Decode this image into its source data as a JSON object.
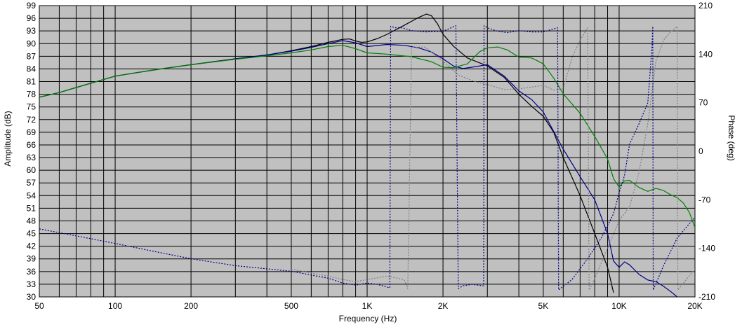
{
  "chart_data": {
    "type": "line",
    "xlabel": "Frequency (Hz)",
    "ylabel": "Amplitude (dB)",
    "y2label": "Phase (deg)",
    "xscale": "log",
    "xlim": [
      50,
      20000
    ],
    "ylim": [
      30,
      99
    ],
    "y2lim": [
      -210,
      210
    ],
    "x_ticks": [
      50,
      100,
      200,
      500,
      1000,
      2000,
      5000,
      10000,
      20000
    ],
    "x_tick_labels": [
      "50",
      "100",
      "200",
      "500",
      "1K",
      "2K",
      "5K",
      "10K",
      "20K"
    ],
    "y_ticks": [
      30,
      33,
      36,
      39,
      42,
      45,
      48,
      51,
      54,
      57,
      60,
      63,
      66,
      69,
      72,
      75,
      78,
      81,
      84,
      87,
      90,
      93,
      96,
      99
    ],
    "y2_ticks": [
      210,
      140,
      70,
      0,
      -70,
      -140,
      -210
    ],
    "x_minor_grid": [
      60,
      70,
      80,
      90,
      300,
      400,
      600,
      700,
      800,
      900,
      3000,
      4000,
      6000,
      7000,
      8000,
      9000
    ],
    "grid": true,
    "colors": {
      "plot_background": "#c0c0c0",
      "grid": "#000000",
      "black": "#000000",
      "blue": "#00008b",
      "green": "#008000",
      "gray": "#808080"
    },
    "series": [
      {
        "color": "#000000",
        "style": "solid",
        "axis": "left",
        "points": [
          [
            50,
            77.3
          ],
          [
            60,
            78.4
          ],
          [
            70,
            79.6
          ],
          [
            80,
            80.6
          ],
          [
            100,
            82.3
          ],
          [
            130,
            83.4
          ],
          [
            160,
            84.2
          ],
          [
            200,
            85.0
          ],
          [
            300,
            86.4
          ],
          [
            400,
            87.3
          ],
          [
            500,
            88.3
          ],
          [
            600,
            89.3
          ],
          [
            700,
            90.3
          ],
          [
            800,
            91.0
          ],
          [
            850,
            91.1
          ],
          [
            900,
            90.6
          ],
          [
            950,
            90.3
          ],
          [
            1000,
            90.4
          ],
          [
            1100,
            91.2
          ],
          [
            1200,
            92.2
          ],
          [
            1400,
            94.3
          ],
          [
            1600,
            96.2
          ],
          [
            1720,
            97.0
          ],
          [
            1800,
            96.6
          ],
          [
            1900,
            94.7
          ],
          [
            2000,
            92.2
          ],
          [
            2200,
            89.4
          ],
          [
            2500,
            86.6
          ],
          [
            3000,
            84.7
          ],
          [
            3500,
            82.0
          ],
          [
            4000,
            78.0
          ],
          [
            4500,
            75.1
          ],
          [
            5000,
            72.8
          ],
          [
            5500,
            69.0
          ],
          [
            6000,
            63.0
          ],
          [
            7000,
            54.0
          ],
          [
            8000,
            45.0
          ],
          [
            9000,
            37.0
          ],
          [
            9500,
            31.0
          ]
        ]
      },
      {
        "color": "#00008b",
        "style": "solid",
        "axis": "left",
        "points": [
          [
            50,
            77.3
          ],
          [
            60,
            78.4
          ],
          [
            70,
            79.6
          ],
          [
            80,
            80.6
          ],
          [
            100,
            82.3
          ],
          [
            130,
            83.4
          ],
          [
            160,
            84.2
          ],
          [
            200,
            85.0
          ],
          [
            300,
            86.4
          ],
          [
            400,
            87.3
          ],
          [
            500,
            88.2
          ],
          [
            600,
            89.1
          ],
          [
            700,
            90.0
          ],
          [
            800,
            90.7
          ],
          [
            900,
            90.2
          ],
          [
            1000,
            89.3
          ],
          [
            1200,
            89.8
          ],
          [
            1400,
            89.6
          ],
          [
            1600,
            89.0
          ],
          [
            1800,
            88.0
          ],
          [
            2000,
            86.4
          ],
          [
            2200,
            84.7
          ],
          [
            2400,
            84.1
          ],
          [
            2600,
            84.4
          ],
          [
            3000,
            85.0
          ],
          [
            3500,
            82.3
          ],
          [
            4000,
            78.8
          ],
          [
            4500,
            76.7
          ],
          [
            5000,
            73.8
          ],
          [
            6000,
            65.0
          ],
          [
            7000,
            58.5
          ],
          [
            8000,
            53.0
          ],
          [
            9000,
            45.0
          ],
          [
            9500,
            38.5
          ],
          [
            10000,
            37.0
          ],
          [
            10500,
            38.3
          ],
          [
            11000,
            37.6
          ],
          [
            12000,
            35.3
          ],
          [
            13000,
            34.0
          ],
          [
            14000,
            33.6
          ],
          [
            15000,
            32.5
          ],
          [
            16000,
            31.3
          ],
          [
            17000,
            30.0
          ]
        ]
      },
      {
        "color": "#008000",
        "style": "solid",
        "axis": "left",
        "points": [
          [
            50,
            77.3
          ],
          [
            60,
            78.4
          ],
          [
            70,
            79.6
          ],
          [
            80,
            80.6
          ],
          [
            100,
            82.3
          ],
          [
            130,
            83.4
          ],
          [
            160,
            84.2
          ],
          [
            200,
            85.0
          ],
          [
            300,
            86.3
          ],
          [
            400,
            87.1
          ],
          [
            500,
            87.8
          ],
          [
            600,
            88.5
          ],
          [
            700,
            89.3
          ],
          [
            800,
            89.6
          ],
          [
            900,
            88.8
          ],
          [
            1000,
            87.8
          ],
          [
            1200,
            87.5
          ],
          [
            1500,
            86.9
          ],
          [
            1800,
            85.7
          ],
          [
            2000,
            84.4
          ],
          [
            2200,
            84.3
          ],
          [
            2500,
            85.2
          ],
          [
            2800,
            88.1
          ],
          [
            3000,
            89.0
          ],
          [
            3300,
            89.2
          ],
          [
            3600,
            88.5
          ],
          [
            4000,
            86.8
          ],
          [
            4500,
            86.6
          ],
          [
            5000,
            85.2
          ],
          [
            5500,
            81.8
          ],
          [
            6000,
            78.1
          ],
          [
            7000,
            73.5
          ],
          [
            8000,
            68.0
          ],
          [
            9000,
            62.7
          ],
          [
            9500,
            58.0
          ],
          [
            10000,
            56.0
          ],
          [
            10500,
            57.5
          ],
          [
            11000,
            57.6
          ],
          [
            12000,
            55.9
          ],
          [
            13000,
            55.0
          ],
          [
            14000,
            55.7
          ],
          [
            15000,
            55.2
          ],
          [
            16000,
            54.2
          ],
          [
            17000,
            53.5
          ],
          [
            18000,
            52.2
          ],
          [
            19000,
            50.0
          ],
          [
            20000,
            46.4
          ]
        ]
      },
      {
        "color": "#00008b",
        "style": "dotted",
        "axis": "right",
        "points": [
          [
            50,
            -112
          ],
          [
            70,
            -122
          ],
          [
            100,
            -133
          ],
          [
            150,
            -146
          ],
          [
            200,
            -155
          ],
          [
            300,
            -165
          ],
          [
            500,
            -173
          ],
          [
            700,
            -183
          ],
          [
            800,
            -190
          ],
          [
            900,
            -193
          ],
          [
            1000,
            -190
          ],
          [
            1100,
            -192
          ],
          [
            1230,
            -197
          ],
          [
            1240,
            180
          ],
          [
            1300,
            178
          ],
          [
            1350,
            178
          ],
          [
            1380,
            178
          ],
          [
            1500,
            174
          ],
          [
            1700,
            172
          ],
          [
            2000,
            173
          ],
          [
            2250,
            181
          ],
          [
            2300,
            -198
          ],
          [
            2400,
            -194
          ],
          [
            2600,
            -192
          ],
          [
            2900,
            -194
          ],
          [
            2910,
            181
          ],
          [
            3000,
            178
          ],
          [
            3300,
            173
          ],
          [
            3600,
            171
          ],
          [
            4000,
            174
          ],
          [
            4500,
            172
          ],
          [
            5000,
            172
          ],
          [
            5700,
            178
          ],
          [
            5750,
            -200
          ],
          [
            6500,
            -185
          ],
          [
            7500,
            -155
          ],
          [
            8500,
            -125
          ],
          [
            9500,
            -90
          ],
          [
            10000,
            -60
          ],
          [
            10500,
            -35
          ],
          [
            11000,
            10
          ],
          [
            12000,
            40
          ],
          [
            13000,
            70
          ],
          [
            13500,
            150
          ],
          [
            13600,
            180
          ],
          [
            13650,
            -200
          ],
          [
            15000,
            -165
          ],
          [
            17000,
            -125
          ],
          [
            20000,
            -95
          ]
        ]
      },
      {
        "color": "#808080",
        "style": "dotted",
        "axis": "right",
        "points": [
          [
            500,
            -170
          ],
          [
            700,
            -180
          ],
          [
            800,
            -185
          ],
          [
            900,
            -188
          ],
          [
            1000,
            -185
          ],
          [
            1200,
            -180
          ],
          [
            1400,
            -185
          ],
          [
            1450,
            -198
          ],
          [
            1500,
            150
          ],
          [
            1700,
            150
          ],
          [
            2000,
            130
          ],
          [
            2300,
            110
          ],
          [
            2600,
            102
          ],
          [
            3000,
            96
          ],
          [
            3500,
            89
          ],
          [
            4000,
            90
          ],
          [
            5000,
            95
          ],
          [
            5500,
            88
          ],
          [
            6000,
            90
          ],
          [
            6500,
            135
          ],
          [
            7000,
            160
          ],
          [
            7500,
            178
          ],
          [
            7600,
            -200
          ],
          [
            8000,
            -183
          ],
          [
            9000,
            -140
          ],
          [
            10000,
            -100
          ],
          [
            11000,
            -80
          ],
          [
            12000,
            -30
          ],
          [
            13000,
            40
          ],
          [
            14000,
            130
          ],
          [
            15000,
            160
          ],
          [
            16000,
            172
          ],
          [
            17000,
            180
          ],
          [
            17100,
            -200
          ],
          [
            18000,
            -190
          ],
          [
            20000,
            -170
          ]
        ]
      }
    ]
  }
}
